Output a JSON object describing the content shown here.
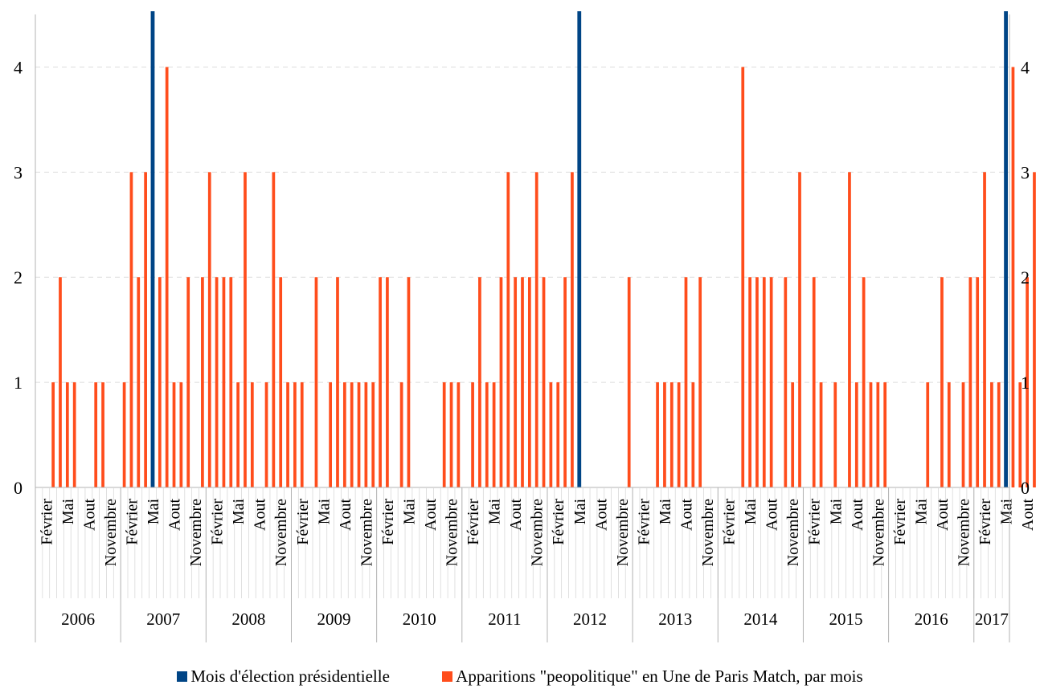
{
  "chart_data": {
    "type": "bar",
    "title": "",
    "xlabel": "",
    "ylabel": "",
    "ylim": [
      0,
      4.5
    ],
    "yticks": [
      0,
      1,
      2,
      3,
      4
    ],
    "grid": true,
    "legend_position": "bottom",
    "start": "2006-01",
    "months_labeled": [
      "Février",
      "Mai",
      "Aout",
      "Novembre"
    ],
    "years": [
      "2006",
      "2007",
      "2008",
      "2009",
      "2010",
      "2011",
      "2012",
      "2013",
      "2014",
      "2015",
      "2016",
      "2017"
    ],
    "series": [
      {
        "name": "Apparitions \"peopolitique\" en Une de Paris Match, par mois",
        "color": "#ff4d1c",
        "values": [
          0,
          0,
          1,
          2,
          1,
          1,
          0,
          0,
          1,
          1,
          0,
          0,
          1,
          3,
          2,
          3,
          4,
          2,
          4,
          1,
          1,
          2,
          0,
          2,
          3,
          2,
          2,
          2,
          1,
          3,
          1,
          0,
          1,
          3,
          2,
          1,
          1,
          1,
          0,
          2,
          0,
          1,
          2,
          1,
          1,
          1,
          1,
          1,
          2,
          2,
          0,
          1,
          2,
          0,
          0,
          0,
          0,
          1,
          1,
          1,
          0,
          1,
          2,
          1,
          1,
          2,
          3,
          2,
          2,
          2,
          3,
          2,
          1,
          1,
          2,
          3,
          1,
          0,
          0,
          0,
          0,
          0,
          0,
          2,
          0,
          0,
          0,
          1,
          1,
          1,
          1,
          2,
          1,
          2,
          0,
          0,
          0,
          0,
          0,
          4,
          2,
          2,
          2,
          2,
          0,
          2,
          1,
          3,
          0,
          2,
          1,
          0,
          1,
          0,
          3,
          1,
          2,
          1,
          1,
          1,
          0,
          0,
          0,
          0,
          0,
          1,
          0,
          2,
          1,
          0,
          1,
          2,
          2,
          3,
          1,
          1,
          0,
          4,
          1,
          2,
          3
        ]
      },
      {
        "name": "Mois d'élection présidentielle",
        "color": "#004586",
        "election_months": [
          "2007-05",
          "2012-05",
          "2017-05"
        ]
      }
    ]
  }
}
